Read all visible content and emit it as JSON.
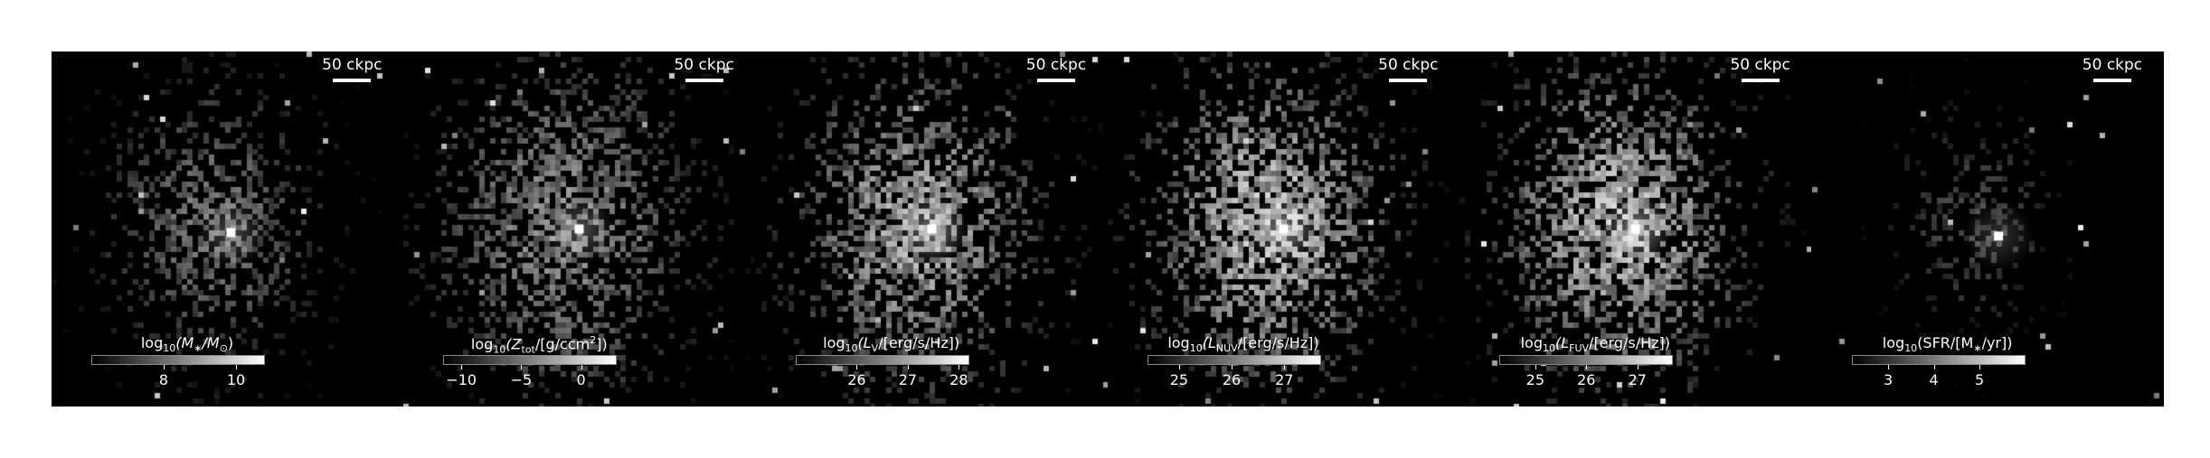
{
  "colors": {
    "background": "#000000",
    "foreground": "#ffffff"
  },
  "panels": [
    {
      "scale_label": "50 ckpc",
      "colorbar": {
        "title_parts": {
          "pre": "log",
          "pre_sub": "10",
          "mid": "(M",
          "mid_sub": "∗",
          "post": "/M",
          "post_sub": "⊙",
          "tail": ")"
        },
        "ticks": [
          "8",
          "10"
        ],
        "tick_values": [
          8,
          10
        ],
        "range": [
          6.0,
          10.8
        ]
      },
      "brightness": 0.55,
      "spread": 0.26,
      "density": 0.55,
      "core": [
        0.5,
        0.5
      ],
      "sat": 0.5,
      "bright_center": [
        0.51,
        0.51
      ]
    },
    {
      "scale_label": "50 ckpc",
      "colorbar": {
        "title_parts": {
          "pre": "log",
          "pre_sub": "10",
          "mid": "(Z",
          "mid_sub": "tot",
          "post": "/[g/ccm",
          "post_sup": "2",
          "tail": "])"
        },
        "ticks": [
          "−10",
          "−5",
          "0"
        ],
        "tick_values": [
          -10,
          -5,
          0
        ],
        "range": [
          -11.5,
          3.0
        ]
      },
      "brightness": 0.65,
      "spread": 0.32,
      "density": 0.72,
      "core": [
        0.5,
        0.5
      ],
      "sat": 0.55,
      "bright_center": [
        0.5,
        0.5
      ]
    },
    {
      "scale_label": "50 ckpc",
      "colorbar": {
        "title_parts": {
          "pre": "log",
          "pre_sub": "10",
          "mid": "(L",
          "mid_sub": "V",
          "post": "/[erg/s/Hz])",
          "tail": ""
        },
        "ticks": [
          "26",
          "27",
          "28"
        ],
        "tick_values": [
          26,
          27,
          28
        ],
        "range": [
          24.8,
          28.2
        ]
      },
      "brightness": 0.8,
      "spread": 0.3,
      "density": 0.75,
      "core": [
        0.5,
        0.5
      ],
      "sat": 0.8,
      "bright_center": [
        0.5,
        0.5
      ]
    },
    {
      "scale_label": "50 ckpc",
      "colorbar": {
        "title_parts": {
          "pre": "log",
          "pre_sub": "10",
          "mid": "(L",
          "mid_sub": "NUV",
          "post": "/[erg/s/Hz])",
          "tail": ""
        },
        "ticks": [
          "25",
          "26",
          "27"
        ],
        "tick_values": [
          25,
          26,
          27
        ],
        "range": [
          24.4,
          27.7
        ]
      },
      "brightness": 0.9,
      "spread": 0.3,
      "density": 0.8,
      "core": [
        0.5,
        0.5
      ],
      "sat": 0.9,
      "bright_center": [
        0.5,
        0.5
      ]
    },
    {
      "scale_label": "50 ckpc",
      "colorbar": {
        "title_parts": {
          "pre": "log",
          "pre_sub": "10",
          "mid": "(L",
          "mid_sub": "FUV",
          "post": "/[erg/s/Hz])",
          "tail": ""
        },
        "ticks": [
          "25",
          "26",
          "27"
        ],
        "tick_values": [
          25,
          26,
          27
        ],
        "range": [
          24.3,
          27.7
        ]
      },
      "brightness": 0.88,
      "spread": 0.3,
      "density": 0.8,
      "core": [
        0.5,
        0.5
      ],
      "sat": 0.88,
      "bright_center": [
        0.5,
        0.5
      ]
    },
    {
      "scale_label": "50 ckpc",
      "colorbar": {
        "title_parts": {
          "pre": "log",
          "pre_sub": "10",
          "mid": "(SFR/[M",
          "mid_sub": "∗",
          "post": "/yr])",
          "tail": ""
        },
        "ticks": [
          "3",
          "4",
          "5"
        ],
        "tick_values": [
          3,
          4,
          5
        ],
        "range": [
          2.2,
          6.0
        ]
      },
      "brightness": 0.35,
      "spread": 0.2,
      "density": 0.35,
      "core": [
        0.5,
        0.5
      ],
      "sat": 0.35,
      "bright_center": [
        0.53,
        0.52
      ]
    }
  ]
}
